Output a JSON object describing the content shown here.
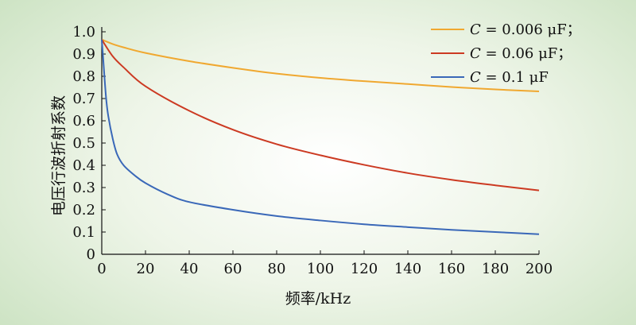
{
  "chart_data": {
    "type": "line",
    "title": "",
    "xlabel": "频率/kHz",
    "ylabel": "电压行波折射系数",
    "xlim": [
      0,
      200
    ],
    "ylim": [
      0,
      1.0
    ],
    "xticks": [
      "0",
      "20",
      "40",
      "60",
      "80",
      "100",
      "120",
      "140",
      "160",
      "180",
      "200"
    ],
    "yticks": [
      "0",
      "0.1",
      "0.2",
      "0.3",
      "0.4",
      "0.5",
      "0.6",
      "0.7",
      "0.8",
      "0.9",
      "1.0"
    ],
    "legend_position": "top-right",
    "series": [
      {
        "name": "C = 0.006 μF；",
        "name_var": "C",
        "name_rest": " = 0.006 μF；",
        "color": "#f0a830",
        "x": [
          0,
          5,
          10,
          20,
          40,
          60,
          80,
          100,
          120,
          140,
          160,
          180,
          200
        ],
        "y": [
          0.965,
          0.945,
          0.93,
          0.905,
          0.868,
          0.838,
          0.812,
          0.793,
          0.778,
          0.765,
          0.752,
          0.741,
          0.732
        ]
      },
      {
        "name": "C = 0.06 μF；",
        "name_var": "C",
        "name_rest": " = 0.06 μF；",
        "color": "#cc3a22",
        "x": [
          0,
          5,
          10,
          20,
          40,
          60,
          80,
          100,
          120,
          140,
          160,
          180,
          200
        ],
        "y": [
          0.965,
          0.89,
          0.84,
          0.755,
          0.645,
          0.56,
          0.495,
          0.445,
          0.402,
          0.365,
          0.335,
          0.31,
          0.287
        ]
      },
      {
        "name": "C = 0.1 μF",
        "name_var": "C",
        "name_rest": " = 0.1 μF",
        "color": "#3a68b8",
        "x": [
          0,
          0.5,
          1,
          2,
          3,
          5,
          7,
          10,
          15,
          20,
          30,
          40,
          60,
          80,
          100,
          120,
          140,
          160,
          180,
          200
        ],
        "y": [
          0.965,
          0.9,
          0.83,
          0.7,
          0.62,
          0.52,
          0.45,
          0.4,
          0.355,
          0.32,
          0.27,
          0.235,
          0.2,
          0.172,
          0.152,
          0.135,
          0.122,
          0.11,
          0.1,
          0.09
        ]
      }
    ]
  }
}
